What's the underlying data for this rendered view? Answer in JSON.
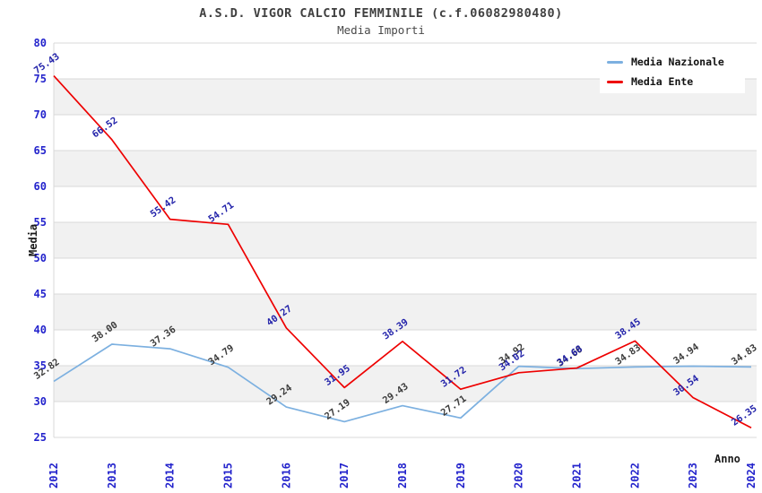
{
  "header": {
    "title": "A.S.D. VIGOR CALCIO FEMMINILE (c.f.06082980480)",
    "subtitle": "Media Importi"
  },
  "legend": {
    "items": [
      {
        "label": "Media Nazionale",
        "color": "#7cb0e0"
      },
      {
        "label": "Media Ente",
        "color": "#ee0000"
      }
    ]
  },
  "chart_data": {
    "type": "line",
    "title": "A.S.D. VIGOR CALCIO FEMMINILE (c.f.06082980480)",
    "subtitle": "Media Importi",
    "xlabel": "Anno",
    "ylabel": "Media",
    "categories": [
      "2012",
      "2013",
      "2014",
      "2015",
      "2016",
      "2017",
      "2018",
      "2019",
      "2020",
      "2021",
      "2022",
      "2023",
      "2024"
    ],
    "ylim": [
      25,
      80
    ],
    "ytick_step": 5,
    "yticks": [
      25,
      30,
      35,
      40,
      45,
      50,
      55,
      60,
      65,
      70,
      75,
      80
    ],
    "grid": true,
    "legend_position": "top-right",
    "series": [
      {
        "name": "Media Nazionale",
        "color": "#7cb0e0",
        "label_color": "#3c3c3c",
        "values": [
          32.82,
          38.0,
          37.36,
          34.79,
          29.24,
          27.19,
          29.43,
          27.71,
          34.92,
          34.6,
          34.83,
          34.94,
          34.83
        ]
      },
      {
        "name": "Media Ente",
        "color": "#ee0000",
        "label_color": "#2323aa",
        "values": [
          75.43,
          66.52,
          55.42,
          54.71,
          40.27,
          31.95,
          38.39,
          31.72,
          34.02,
          34.68,
          38.45,
          30.54,
          26.35
        ]
      }
    ],
    "style": {
      "grid_color": "#d9d9d9",
      "band_color": "#f1f1f1",
      "tick_color": "#2323cc",
      "title_color": "#404040"
    }
  }
}
